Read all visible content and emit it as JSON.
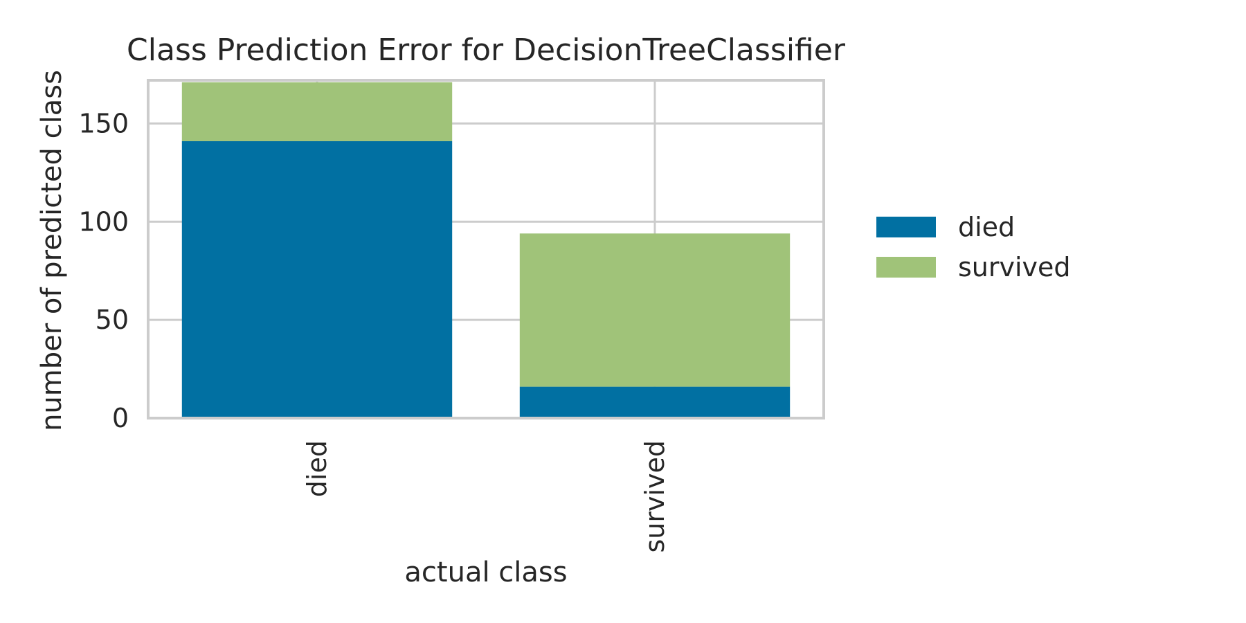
{
  "chart_data": {
    "type": "bar",
    "stacked": true,
    "title": "Class Prediction Error for DecisionTreeClassifier",
    "xlabel": "actual class",
    "ylabel": "number of predicted class",
    "categories": [
      "died",
      "survived"
    ],
    "series": [
      {
        "name": "died",
        "color": "#0170a2",
        "values": [
          141,
          16
        ]
      },
      {
        "name": "survived",
        "color": "#a0c379",
        "values": [
          30,
          78
        ]
      }
    ],
    "ylim": [
      0,
      172
    ],
    "yticks": [
      0,
      50,
      100,
      150
    ],
    "grid": true,
    "legend_position": "right"
  }
}
